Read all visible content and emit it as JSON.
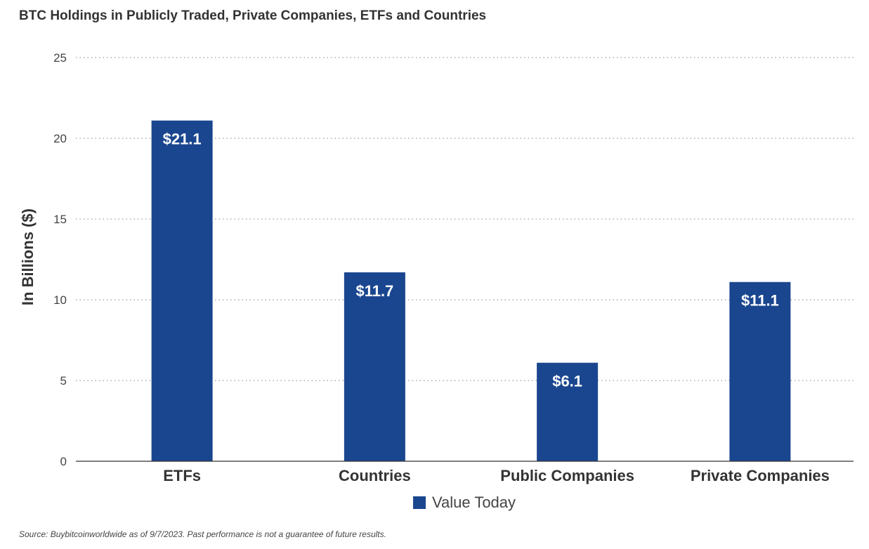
{
  "colors": {
    "bar": "#1a468f",
    "grid": "#9a9a9a",
    "axis": "#333333",
    "bar_label": "#ffffff"
  },
  "chart_data": {
    "type": "bar",
    "title": "BTC Holdings in Publicly Traded, Private Companies, ETFs and Countries",
    "ylabel": "In Billions ($)",
    "xlabel": "",
    "categories": [
      "ETFs",
      "Countries",
      "Public Companies",
      "Private Companies"
    ],
    "series": [
      {
        "name": "Value Today",
        "values": [
          21.1,
          11.7,
          6.1,
          11.1
        ],
        "labels": [
          "$21.1",
          "$11.7",
          "$6.1",
          "$11.1"
        ]
      }
    ],
    "ylim": [
      0,
      25
    ],
    "yticks": [
      "0",
      "5",
      "10",
      "15",
      "20",
      "25"
    ],
    "grid": true,
    "legend_position": "bottom-center"
  },
  "footer": {
    "source": "Source: Buybitcoinworldwide as of 9/7/2023. Past performance is not a guarantee of future results."
  }
}
